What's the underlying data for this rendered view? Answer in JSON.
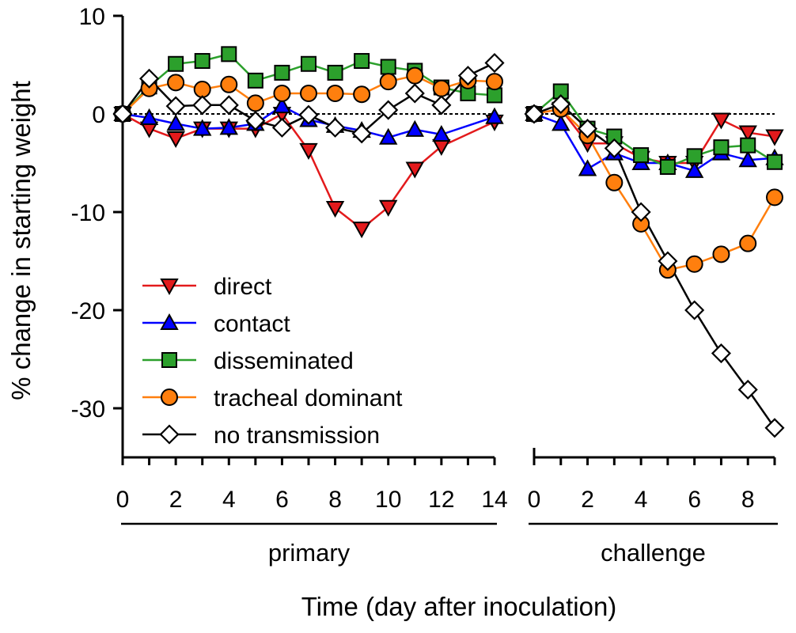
{
  "chart_data": {
    "type": "line",
    "xlabel": "Time (day after inoculation)",
    "ylabel": "% change in starting weight",
    "ylim": [
      -35,
      10
    ],
    "yticks": [
      10,
      0,
      -10,
      -20,
      -30
    ],
    "reference_line": {
      "y": 0,
      "style": "dotted"
    },
    "legend_position": "bottom-left",
    "panels": [
      {
        "label": "primary",
        "xlim": [
          0,
          14
        ],
        "xticks": [
          0,
          2,
          4,
          6,
          8,
          10,
          12,
          14
        ],
        "series": [
          {
            "name": "direct",
            "color": "#e31a1c",
            "marker": "triangle-down",
            "x": [
              0,
              1,
              2,
              3,
              4,
              5,
              6,
              7,
              8,
              9,
              10,
              11,
              12,
              13,
              14
            ],
            "y": [
              0,
              -1.5,
              -2.5,
              -1.5,
              -1.5,
              -1.5,
              0,
              -3.7,
              -9.6,
              -11.7,
              -9.5,
              -5.6,
              -3.3,
              null,
              -0.8
            ]
          },
          {
            "name": "contact",
            "color": "#0000ff",
            "marker": "triangle-up",
            "x": [
              0,
              1,
              2,
              3,
              4,
              5,
              6,
              7,
              8,
              9,
              10,
              11,
              12,
              13,
              14
            ],
            "y": [
              0,
              -0.4,
              -1.0,
              -1.5,
              -1.4,
              -1.0,
              0.8,
              -0.6,
              -1.2,
              -1.7,
              -2.4,
              -1.6,
              -2.1,
              null,
              -0.3
            ]
          },
          {
            "name": "disseminated",
            "color": "#2ca02c",
            "marker": "square",
            "x": [
              0,
              1,
              2,
              3,
              4,
              5,
              6,
              7,
              8,
              9,
              10,
              11,
              12,
              13,
              14
            ],
            "y": [
              0,
              2.8,
              5.1,
              5.4,
              6.1,
              3.4,
              4.2,
              5.1,
              4.2,
              5.4,
              4.8,
              4.4,
              2.7,
              2.1,
              1.9
            ]
          },
          {
            "name": "tracheal dominant",
            "color": "#ff7f0e",
            "marker": "circle",
            "x": [
              0,
              1,
              2,
              3,
              4,
              5,
              6,
              7,
              8,
              9,
              10,
              11,
              12,
              13,
              14
            ],
            "y": [
              0,
              2.6,
              3.2,
              2.5,
              3.0,
              1.1,
              2.1,
              2.1,
              2.1,
              2.0,
              3.3,
              3.9,
              2.6,
              3.4,
              3.3
            ]
          },
          {
            "name": "no transmission",
            "color": "#000000",
            "marker": "diamond-open",
            "x": [
              0,
              1,
              2,
              3,
              4,
              5,
              6,
              7,
              8,
              9,
              10,
              11,
              12,
              13,
              14
            ],
            "y": [
              0,
              3.6,
              0.8,
              0.9,
              0.9,
              -0.7,
              -1.4,
              -0.1,
              -1.4,
              -2.0,
              0.4,
              2.1,
              0.9,
              3.9,
              5.2
            ]
          }
        ]
      },
      {
        "label": "challenge",
        "xlim": [
          0,
          9
        ],
        "xticks": [
          0,
          2,
          4,
          6,
          8
        ],
        "series": [
          {
            "name": "direct",
            "color": "#e31a1c",
            "marker": "triangle-down",
            "x": [
              0,
              1,
              2,
              3,
              4,
              5,
              6,
              7,
              8,
              9
            ],
            "y": [
              0,
              0.5,
              -3.0,
              -3.0,
              -4.5,
              -5.0,
              -5.0,
              -0.6,
              -1.9,
              -2.3
            ]
          },
          {
            "name": "contact",
            "color": "#0000ff",
            "marker": "triangle-up",
            "x": [
              0,
              1,
              2,
              3,
              4,
              5,
              6,
              7,
              8,
              9
            ],
            "y": [
              0,
              -1.0,
              -5.6,
              -4.0,
              -5.0,
              -5.0,
              -5.8,
              -4.0,
              -4.7,
              -4.5
            ]
          },
          {
            "name": "disseminated",
            "color": "#2ca02c",
            "marker": "square",
            "x": [
              0,
              1,
              2,
              3,
              4,
              5,
              6,
              7,
              8,
              9
            ],
            "y": [
              0,
              2.3,
              -1.5,
              -2.3,
              -4.2,
              -5.4,
              -4.3,
              -3.4,
              -3.2,
              -4.9
            ]
          },
          {
            "name": "tracheal dominant",
            "color": "#ff7f0e",
            "marker": "circle",
            "x": [
              0,
              1,
              2,
              3,
              4,
              5,
              6,
              7,
              8,
              9
            ],
            "y": [
              0,
              0.5,
              -2.2,
              -7.0,
              -11.2,
              -15.9,
              -15.3,
              -14.3,
              -13.2,
              -8.5
            ]
          },
          {
            "name": "no transmission",
            "color": "#000000",
            "marker": "diamond-open",
            "x": [
              0,
              1,
              2,
              3,
              4,
              5,
              6,
              7,
              8,
              9
            ],
            "y": [
              0,
              1.0,
              -1.5,
              -3.5,
              -10.0,
              -15.0,
              -20.0,
              -24.4,
              -28.1,
              -32.0
            ]
          }
        ]
      }
    ]
  }
}
